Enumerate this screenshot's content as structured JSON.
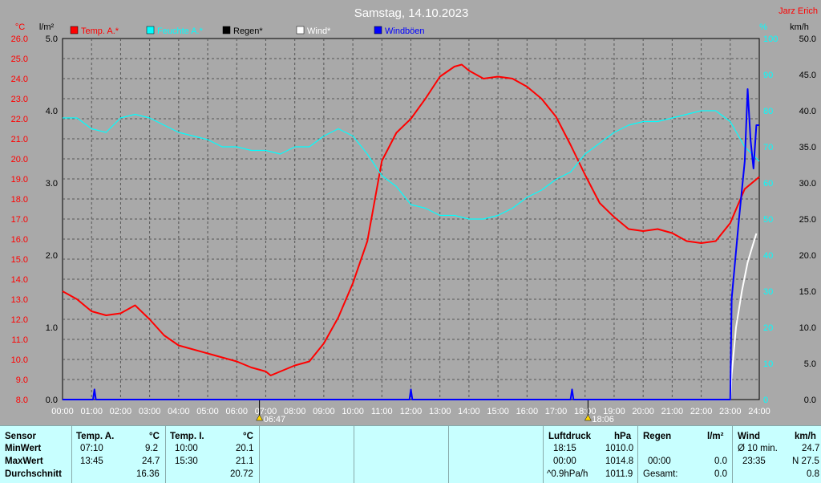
{
  "chart_data": {
    "type": "line",
    "title": "Samstag, 14.10.2023",
    "author": "Jarz Erich",
    "left_axis1": {
      "unit": "°C",
      "color": "#ff0000",
      "min": 8,
      "max": 26,
      "step": 1
    },
    "left_axis2": {
      "unit": "l/m²",
      "color": "#000000",
      "min": 0,
      "max": 5,
      "step": 1
    },
    "right_axis1": {
      "unit": "%",
      "color": "#00ffff",
      "min": 0,
      "max": 100,
      "step": 10
    },
    "right_axis2": {
      "unit": "km/h",
      "color": "#000000",
      "min": 0,
      "max": 50,
      "step": 5
    },
    "x_ticks": [
      "00:00",
      "01:00",
      "02:00",
      "03:00",
      "04:00",
      "05:00",
      "06:00",
      "07:00",
      "08:00",
      "09:00",
      "10:00",
      "11:00",
      "12:00",
      "13:00",
      "14:00",
      "15:00",
      "16:00",
      "17:00",
      "18:00",
      "19:00",
      "20:00",
      "21:00",
      "22:00",
      "23:00",
      "24:00"
    ],
    "sunrise": "06:47",
    "sunset": "18:06",
    "grid": true,
    "legend": {
      "placement": "top",
      "items": [
        {
          "name": "Temp. A.*",
          "color": "#ff0000"
        },
        {
          "name": "Feuchte A.*",
          "color": "#00ffff"
        },
        {
          "name": "Regen*",
          "color": "#000000"
        },
        {
          "name": "Wind*",
          "color": "#ffffff"
        },
        {
          "name": "Windböen",
          "color": "#0000ff"
        }
      ]
    },
    "series": [
      {
        "name": "Temp. A.*",
        "color": "#ff0000",
        "axis": "temp",
        "x": [
          0,
          0.5,
          1,
          1.5,
          2,
          2.5,
          3,
          3.5,
          4,
          4.5,
          5,
          5.5,
          6,
          6.5,
          7,
          7.17,
          7.5,
          8,
          8.5,
          9,
          9.5,
          10,
          10.5,
          11,
          11.5,
          12,
          12.5,
          13,
          13.5,
          13.75,
          14,
          14.5,
          15,
          15.5,
          16,
          16.5,
          17,
          17.5,
          18,
          18.5,
          19,
          19.5,
          20,
          20.5,
          21,
          21.5,
          22,
          22.5,
          23,
          23.5,
          24
        ],
        "values": [
          13.4,
          13.0,
          12.4,
          12.2,
          12.3,
          12.7,
          12.0,
          11.2,
          10.7,
          10.5,
          10.3,
          10.1,
          9.9,
          9.6,
          9.4,
          9.2,
          9.4,
          9.7,
          9.9,
          10.8,
          12.1,
          13.8,
          15.9,
          19.9,
          21.3,
          22.0,
          23.0,
          24.1,
          24.6,
          24.7,
          24.4,
          24.0,
          24.1,
          24.0,
          23.6,
          23.0,
          22.1,
          20.7,
          19.2,
          17.8,
          17.1,
          16.5,
          16.4,
          16.5,
          16.3,
          15.9,
          15.8,
          15.9,
          16.8,
          18.5,
          19.1
        ]
      },
      {
        "name": "Feuchte A.*",
        "color": "#00ffff",
        "axis": "humidity",
        "x": [
          0,
          0.5,
          1,
          1.5,
          2,
          2.5,
          3,
          3.5,
          4,
          4.5,
          5,
          5.5,
          6,
          6.5,
          7,
          7.5,
          8,
          8.5,
          9,
          9.5,
          10,
          10.5,
          11,
          11.5,
          12,
          12.5,
          13,
          13.5,
          14,
          14.5,
          15,
          15.5,
          16,
          16.5,
          17,
          17.5,
          18,
          18.5,
          19,
          19.5,
          20,
          20.5,
          21,
          21.5,
          22,
          22.5,
          23,
          23.5,
          24
        ],
        "values": [
          78,
          78,
          75,
          74,
          78,
          79,
          78,
          76,
          74,
          73,
          72,
          70,
          70,
          69,
          69,
          68,
          70,
          70,
          73,
          75,
          73,
          68,
          62,
          59,
          54,
          53,
          51,
          51,
          50,
          50,
          51,
          53,
          56,
          58,
          61,
          63,
          68,
          71,
          74,
          76,
          77,
          77,
          78,
          79,
          80,
          80,
          77,
          70,
          66
        ]
      },
      {
        "name": "Wind*",
        "color": "#ffffff",
        "axis": "wind",
        "x": [
          23.0,
          23.05,
          23.2,
          23.4,
          23.6,
          23.75,
          23.9
        ],
        "values": [
          0,
          3.5,
          10,
          15,
          19,
          21,
          23
        ]
      },
      {
        "name": "Windböen",
        "color": "#0000ff",
        "axis": "wind",
        "x": [
          0,
          1.0,
          1.05,
          1.1,
          1.15,
          1.2,
          11.9,
          11.95,
          12.0,
          12.05,
          12.1,
          17.45,
          17.5,
          17.55,
          17.6,
          17.65,
          23.0,
          23.05,
          23.3,
          23.5,
          23.6,
          23.7,
          23.8,
          23.9,
          24
        ],
        "values": [
          0,
          0,
          0,
          1.4,
          0,
          0,
          0,
          0,
          1.4,
          0,
          0,
          0,
          0,
          1.4,
          0,
          0,
          0,
          14,
          25,
          33,
          43,
          36,
          32,
          38,
          38
        ]
      }
    ]
  },
  "table": {
    "sensor": {
      "header": "Sensor",
      "rows": [
        "MinWert",
        "MaxWert",
        "Durchschnitt"
      ]
    },
    "temp_a": {
      "header": "Temp. A.",
      "unit": "°C",
      "min_time": "07:10",
      "min_val": "9.2",
      "max_time": "13:45",
      "max_val": "24.7",
      "avg": "16.36"
    },
    "temp_i": {
      "header": "Temp. I.",
      "unit": "°C",
      "min_time": "10:00",
      "min_val": "20.1",
      "max_time": "15:30",
      "max_val": "21.1",
      "avg": "20.72"
    },
    "pressure": {
      "header": "Luftdruck",
      "unit": "hPa",
      "r1_label": "18:15",
      "r1_val": "1010.0",
      "r2_label": "00:00",
      "r2_val": "1014.8",
      "r3_label": "^0.9hPa/h",
      "r3_val": "1011.9"
    },
    "rain": {
      "header": "Regen",
      "unit": "l/m²",
      "r2_label": "00:00",
      "r2_val": "0.0",
      "r3_label": "Gesamt:",
      "r3_val": "0.0"
    },
    "wind": {
      "header": "Wind",
      "unit": "km/h",
      "r1_label": "Ø 10 min.",
      "r1_val": "24.7",
      "r2_label": "23:35",
      "r2_val": "N 27.5",
      "r3_val": "0.8"
    }
  }
}
